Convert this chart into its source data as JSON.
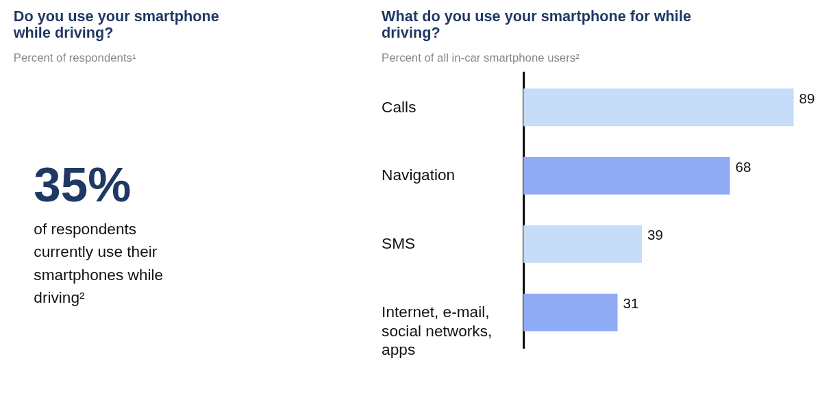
{
  "chart_data": [
    {
      "type": "other",
      "title": "Do you use your smartphone while driving?",
      "subtitle": "Percent of respondents¹",
      "annotations": [
        "35%",
        "of respondents",
        "currently use their",
        "smartphones while",
        "driving²"
      ]
    },
    {
      "type": "bar",
      "orientation": "horizontal",
      "title": "What do you use your smartphone for while driving?",
      "subtitle": "Percent of all in-car smartphone users²",
      "categories": [
        "Calls",
        "Navigation",
        "SMS",
        "Internet, e-mail, social networks, apps"
      ],
      "values": [
        89,
        68,
        39,
        31
      ],
      "colors": [
        "#c6dcf8",
        "#8fabf5",
        "#c6dcf8",
        "#8fabf5"
      ],
      "data_labels": true
    }
  ]
}
